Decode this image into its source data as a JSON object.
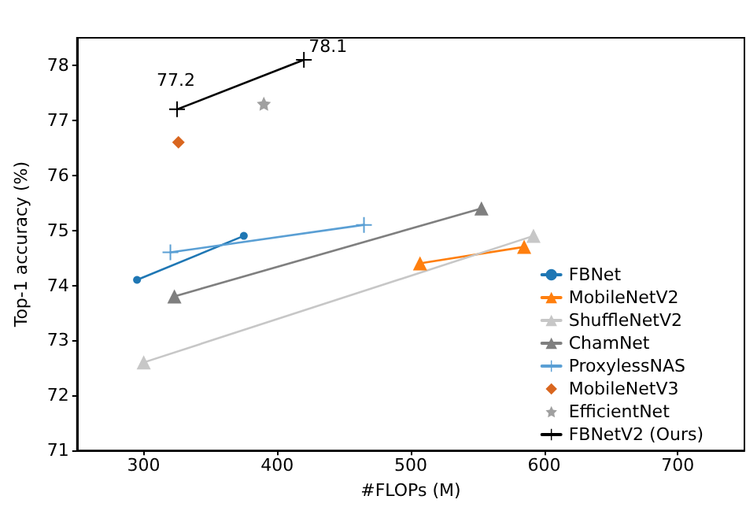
{
  "chart_data": {
    "type": "line",
    "xlabel": "#FLOPs (M)",
    "ylabel": "Top-1 accuracy (%)",
    "xlim": [
      250,
      750
    ],
    "xticks": [
      300,
      400,
      500,
      600,
      700
    ],
    "ylim": [
      71,
      78.5
    ],
    "yticks": [
      71,
      72,
      73,
      74,
      75,
      76,
      77,
      78
    ],
    "grid": false,
    "legend": "right",
    "line_style": "solid",
    "series": [
      {
        "name": "FBNet",
        "color": "#1f77b4",
        "marker": "circle",
        "x": [
          295,
          375
        ],
        "values": [
          74.1,
          74.9
        ]
      },
      {
        "name": "MobileNetV2",
        "color": "#ff7f0e",
        "marker": "triangle",
        "x": [
          507,
          585
        ],
        "values": [
          74.4,
          74.7
        ]
      },
      {
        "name": "ShuffleNetV2",
        "color": "#c7c7c7",
        "marker": "triangle",
        "x": [
          300,
          592
        ],
        "values": [
          72.6,
          74.9
        ]
      },
      {
        "name": "ChamNet",
        "color": "#7f7f7f",
        "marker": "triangle",
        "x": [
          323,
          553
        ],
        "values": [
          73.8,
          75.4
        ]
      },
      {
        "name": "ProxylessNAS",
        "color": "#5a9fd4",
        "marker": "cross",
        "x": [
          320,
          465
        ],
        "values": [
          74.6,
          75.1
        ]
      },
      {
        "name": "MobileNetV3",
        "color": "#d9661f",
        "type": "scatter",
        "marker": "diamond",
        "x": [
          326
        ],
        "values": [
          76.6
        ]
      },
      {
        "name": "EfficientNet",
        "color": "#a0a0a0",
        "type": "scatter",
        "marker": "star",
        "x": [
          390
        ],
        "values": [
          77.3
        ]
      },
      {
        "name": "FBNetV2 (Ours)",
        "color": "#000000",
        "marker": "cross",
        "x": [
          325,
          420
        ],
        "values": [
          77.2,
          78.1
        ],
        "value_labels": [
          "77.2",
          "78.1"
        ]
      }
    ]
  }
}
